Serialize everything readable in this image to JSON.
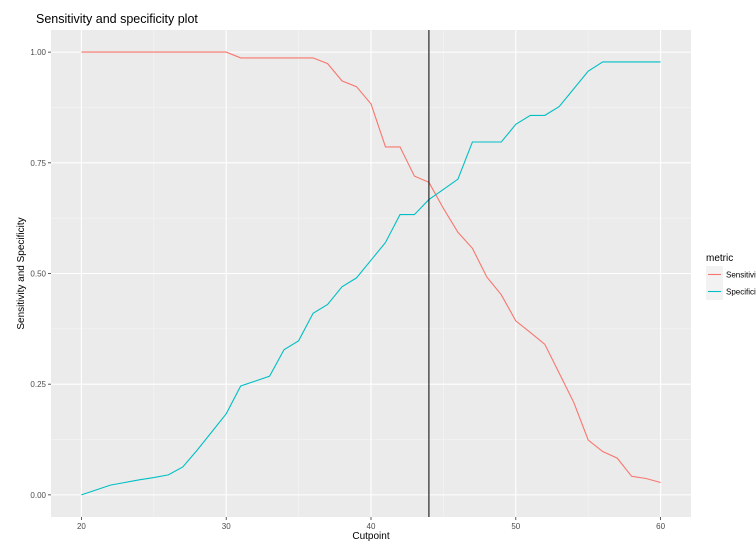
{
  "chart_data": {
    "type": "line",
    "title": "Sensitivity and specificity plot",
    "xlabel": "Cutpoint",
    "ylabel": "Sensitivity and Specificity",
    "xlim": [
      17.9,
      62.1
    ],
    "ylim": [
      -0.05,
      1.05
    ],
    "x_ticks": [
      20,
      30,
      40,
      50,
      60
    ],
    "y_ticks": [
      0.0,
      0.25,
      0.5,
      0.75,
      1.0
    ],
    "x_tick_labels": [
      "20",
      "30",
      "40",
      "50",
      "60"
    ],
    "y_tick_labels": [
      "0.00",
      "0.25",
      "0.50",
      "0.75",
      "1.00"
    ],
    "grid": true,
    "legend": {
      "title": "metric",
      "position": "right"
    },
    "vline": 44,
    "series": [
      {
        "name": "Sensitivity",
        "color": "#F8766D",
        "x": [
          20,
          21,
          22,
          23,
          24,
          25,
          26,
          27,
          28,
          29,
          30,
          31,
          32,
          33,
          34,
          35,
          36,
          37,
          38,
          39,
          40,
          41,
          42,
          43,
          44,
          45,
          46,
          47,
          48,
          49,
          50,
          51,
          52,
          53,
          54,
          55,
          56,
          57,
          58,
          59,
          60
        ],
        "values": [
          1.0,
          1.0,
          1.0,
          1.0,
          1.0,
          1.0,
          1.0,
          1.0,
          1.0,
          1.0,
          1.0,
          0.987,
          0.987,
          0.987,
          0.987,
          0.987,
          0.987,
          0.974,
          0.935,
          0.922,
          0.883,
          0.786,
          0.786,
          0.72,
          0.706,
          0.647,
          0.593,
          0.557,
          0.492,
          0.452,
          0.393,
          0.367,
          0.34,
          0.275,
          0.209,
          0.124,
          0.098,
          0.083,
          0.042,
          0.037,
          0.028
        ]
      },
      {
        "name": "Specificity",
        "color": "#00BFC4",
        "x": [
          20,
          21,
          22,
          23,
          24,
          25,
          26,
          27,
          28,
          29,
          30,
          31,
          32,
          33,
          34,
          35,
          36,
          37,
          38,
          39,
          40,
          41,
          42,
          43,
          44,
          45,
          46,
          47,
          48,
          49,
          50,
          51,
          52,
          53,
          54,
          55,
          56,
          57,
          58,
          59,
          60
        ],
        "values": [
          0.0,
          0.011,
          0.022,
          0.028,
          0.034,
          0.039,
          0.045,
          0.063,
          0.101,
          0.142,
          0.183,
          0.246,
          0.257,
          0.268,
          0.328,
          0.348,
          0.41,
          0.43,
          0.47,
          0.49,
          0.53,
          0.57,
          0.633,
          0.633,
          0.667,
          0.69,
          0.713,
          0.797,
          0.797,
          0.797,
          0.837,
          0.857,
          0.857,
          0.877,
          0.917,
          0.957,
          0.978,
          0.978,
          0.978,
          0.978,
          0.978
        ]
      }
    ]
  }
}
